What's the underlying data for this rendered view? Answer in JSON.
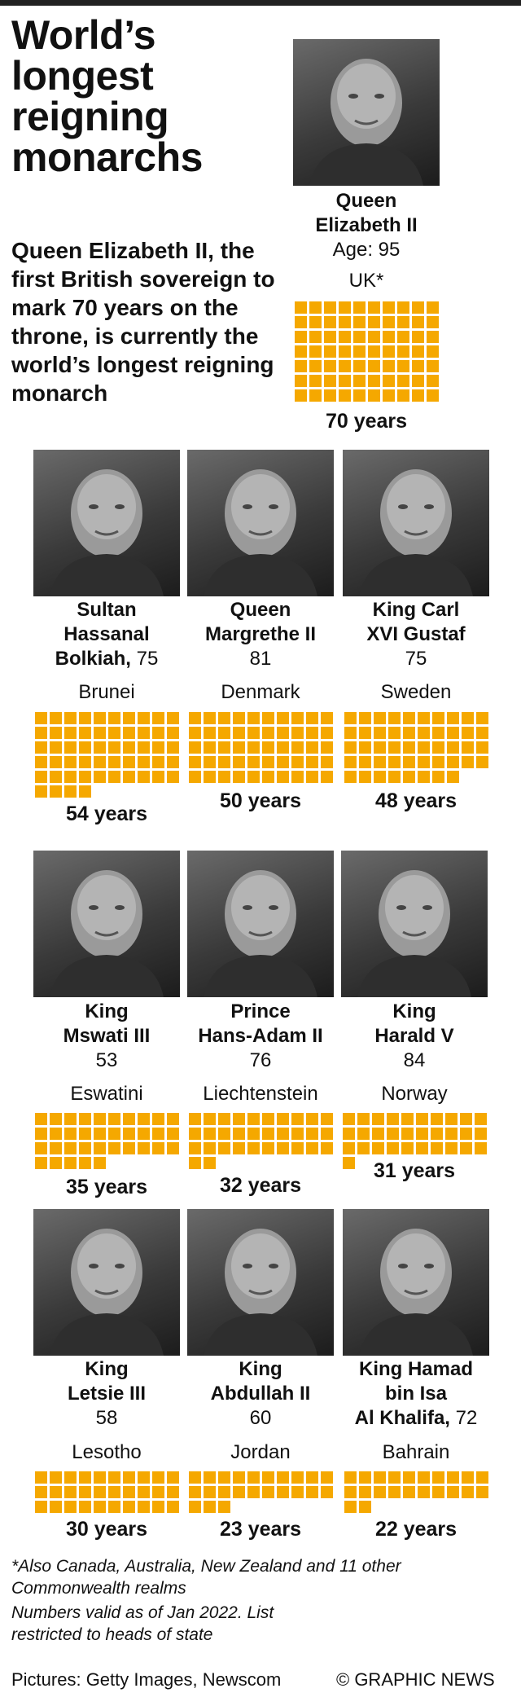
{
  "title": "World’s longest reigning monarchs",
  "subtitle": "Queen Elizabeth II, the first British sovereign to mark 70 years on the throne, is currently the world’s longest reigning monarch",
  "footnotes": {
    "also": "*Also Canada, Australia, New Zealand and 11 other Commonwealth realms",
    "valid": "Numbers valid as of Jan 2022. List restricted to heads of state"
  },
  "credits": {
    "pictures": "Pictures: Getty Images, Newscom",
    "source": "© GRAPHIC NEWS"
  },
  "colors": {
    "square": "#f5a800",
    "bar": "#222222"
  },
  "chart_data": {
    "type": "unit",
    "unit": "years on the throne",
    "monarchs": [
      {
        "name": "Queen Elizabeth II",
        "age_label": "Age: 95",
        "age": 95,
        "country": "UK*",
        "years": 70,
        "years_label": "70 years"
      },
      {
        "name": "Sultan Hassanal Bolkiah",
        "age_label": "75",
        "age": 75,
        "country": "Brunei",
        "years": 54,
        "years_label": "54 years"
      },
      {
        "name": "Queen Margrethe II",
        "age_label": "81",
        "age": 81,
        "country": "Denmark",
        "years": 50,
        "years_label": "50 years"
      },
      {
        "name": "King Carl XVI Gustaf",
        "age_label": "75",
        "age": 75,
        "country": "Sweden",
        "years": 48,
        "years_label": "48 years"
      },
      {
        "name": "King Mswati III",
        "age_label": "53",
        "age": 53,
        "country": "Eswatini",
        "years": 35,
        "years_label": "35 years"
      },
      {
        "name": "Prince Hans-Adam II",
        "age_label": "76",
        "age": 76,
        "country": "Liechtenstein",
        "years": 32,
        "years_label": "32 years"
      },
      {
        "name": "King Harald V",
        "age_label": "84",
        "age": 84,
        "country": "Norway",
        "years": 31,
        "years_label": "31 years"
      },
      {
        "name": "King Letsie III",
        "age_label": "58",
        "age": 58,
        "country": "Lesotho",
        "years": 30,
        "years_label": "30 years"
      },
      {
        "name": "King Abdullah II",
        "age_label": "60",
        "age": 60,
        "country": "Jordan",
        "years": 23,
        "years_label": "23 years"
      },
      {
        "name": "King Hamad bin Isa Al Khalifa",
        "age_label": "72",
        "age": 72,
        "country": "Bahrain",
        "years": 22,
        "years_label": "22 years"
      }
    ]
  }
}
